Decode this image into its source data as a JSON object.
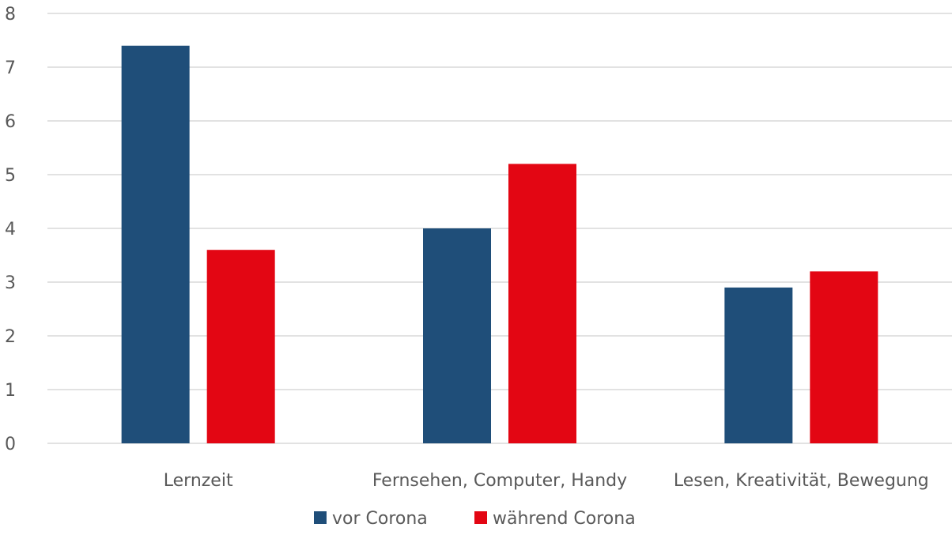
{
  "chart_data": {
    "type": "bar",
    "title": "",
    "xlabel": "",
    "ylabel": "",
    "categories": [
      "Lernzeit",
      "Fernsehen, Computer, Handy",
      "Lesen, Kreativität, Bewegung"
    ],
    "series": [
      {
        "name": "vor Corona",
        "values": [
          7.4,
          4.0,
          2.9
        ],
        "color": "#1f4e79"
      },
      {
        "name": "während Corona",
        "values": [
          3.6,
          5.2,
          3.2
        ],
        "color": "#e30613"
      }
    ],
    "ylim": [
      0,
      8
    ],
    "yticks": [
      0,
      1,
      2,
      3,
      4,
      5,
      6,
      7,
      8
    ],
    "grid": true,
    "legend_position": "bottom"
  }
}
